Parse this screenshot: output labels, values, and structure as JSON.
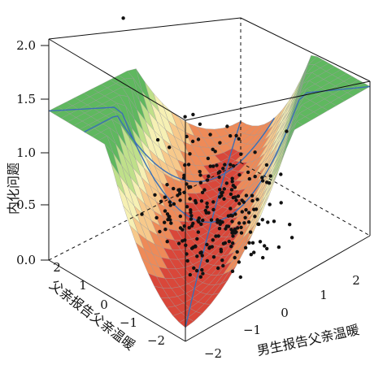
{
  "chart_data": {
    "type": "surface3d",
    "title": "",
    "zlabel": "内化问题",
    "xlabel": "男生报告父亲温暖",
    "ylabel": "父亲报告父亲温暖",
    "zticks": [
      "0.0",
      "0.5",
      "1.0",
      "1.5",
      "2.0"
    ],
    "xticks": [
      "−2",
      "−1",
      "0",
      "1",
      "2"
    ],
    "yticks": [
      "2",
      "1",
      "0",
      "−1",
      "−2"
    ],
    "xlim": [
      -2.5,
      2.5
    ],
    "ylim": [
      -2.5,
      2.5
    ],
    "zlim": [
      0,
      2
    ],
    "surface_colormap": [
      "#d9473a",
      "#ee8a58",
      "#f7c98b",
      "#f6f0b4",
      "#bfe08a",
      "#5fb85f"
    ],
    "ridge_line_color": "#3b6fb6",
    "points_color": "#111111",
    "scatter_points_approx": [
      {
        "x": -0.7,
        "y": 2.3,
        "z": 1.9
      },
      {
        "x": 0.3,
        "y": 0.1,
        "z": 0.9
      },
      {
        "x": 0.0,
        "y": -0.3,
        "z": 0.7
      },
      {
        "x": -0.2,
        "y": -0.6,
        "z": 0.6
      },
      {
        "x": 0.4,
        "y": 0.6,
        "z": 0.6
      },
      {
        "x": -1.0,
        "y": -1.0,
        "z": 0.3
      },
      {
        "x": 1.0,
        "y": 1.0,
        "z": 0.2
      },
      {
        "x": -0.5,
        "y": -1.8,
        "z": 0.1
      },
      {
        "x": 0.2,
        "y": 0.2,
        "z": 0.3
      },
      {
        "x": -0.3,
        "y": 0.4,
        "z": 0.2
      }
    ]
  }
}
